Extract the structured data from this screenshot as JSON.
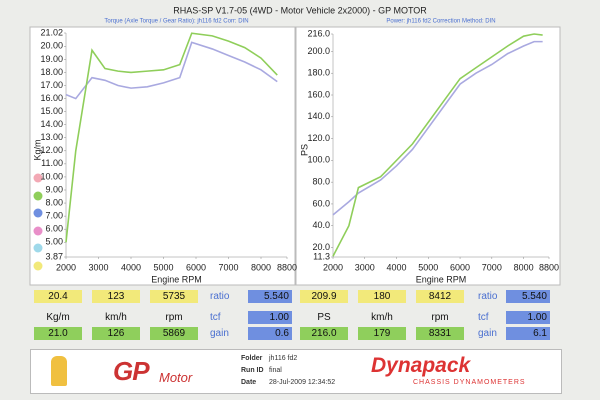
{
  "header": {
    "title": "RHAS-SP V1.7-05   (4WD - Motor Vehicle 2x2000) - GP MOTOR"
  },
  "chart_data": [
    {
      "type": "line",
      "subtitle": "Torque (Axle Torque / Gear Ratio): jh116 fd2   Corr: DIN",
      "ylabel": "Kg/m",
      "xlabel": "Engine RPM",
      "x": [
        2000,
        2300,
        2800,
        3200,
        3600,
        4000,
        4500,
        5000,
        5500,
        5869,
        6500,
        7000,
        7500,
        8000,
        8500
      ],
      "series": [
        {
          "color": "#a9a9e0",
          "values": [
            16.3,
            16.0,
            17.6,
            17.4,
            17.0,
            16.8,
            16.9,
            17.2,
            17.6,
            20.3,
            19.8,
            19.3,
            18.8,
            18.2,
            17.3
          ]
        },
        {
          "color": "#8fce5a",
          "values": [
            5.0,
            12.0,
            19.7,
            18.3,
            18.1,
            18.0,
            18.1,
            18.2,
            18.6,
            21.0,
            20.8,
            20.4,
            19.9,
            19.1,
            17.8
          ]
        }
      ],
      "xlim": [
        2000,
        8800
      ],
      "xticks": [
        2000,
        3000,
        4000,
        5000,
        6000,
        7000,
        8000,
        8800
      ],
      "ylim": [
        3.87,
        21.02
      ],
      "yticks": [
        21.02,
        {
          "value": 20,
          "label": "20.00"
        },
        {
          "value": 19,
          "label": "19.00"
        },
        {
          "value": 18,
          "label": "18.00"
        },
        {
          "value": 17,
          "label": "17.00"
        },
        {
          "value": 16,
          "label": "16.00"
        },
        {
          "value": 15,
          "label": "15.00"
        },
        {
          "value": 14,
          "label": "14.00"
        },
        {
          "value": 13,
          "label": "13.00"
        },
        {
          "value": 12,
          "label": "12.00"
        },
        {
          "value": 11,
          "label": "11.00"
        },
        {
          "value": 10,
          "label": "10.00"
        },
        {
          "value": 9,
          "label": "9.00"
        },
        {
          "value": 8,
          "label": "8.00"
        },
        {
          "value": 7,
          "label": "7.00"
        },
        {
          "value": 6,
          "label": "6.00"
        },
        {
          "value": 5,
          "label": "5.00"
        },
        3.87
      ]
    },
    {
      "type": "line",
      "subtitle": "Power: jh116 fd2   Correction Method: DIN",
      "ylabel": "PS",
      "xlabel": "Engine RPM",
      "x": [
        2000,
        2500,
        2800,
        3500,
        4000,
        4500,
        5000,
        5500,
        6000,
        6500,
        7000,
        7500,
        8000,
        8331,
        8600
      ],
      "series": [
        {
          "color": "#a9a9e0",
          "values": [
            50,
            62,
            70,
            82,
            95,
            110,
            130,
            150,
            170,
            180,
            188,
            198,
            205,
            209,
            209
          ]
        },
        {
          "color": "#8fce5a",
          "values": [
            12,
            40,
            75,
            85,
            100,
            115,
            135,
            155,
            175,
            185,
            195,
            205,
            214,
            216,
            215
          ]
        }
      ],
      "xlim": [
        2000,
        8800
      ],
      "xticks": [
        2000,
        3000,
        4000,
        5000,
        6000,
        7000,
        8000,
        8800
      ],
      "ylim": [
        11.3,
        216
      ],
      "yticks": [
        {
          "value": 216,
          "label": "216.0"
        },
        {
          "value": 200,
          "label": "200.0"
        },
        {
          "value": 180,
          "label": "180.0"
        },
        {
          "value": 160,
          "label": "160.0"
        },
        {
          "value": 140,
          "label": "140.0"
        },
        {
          "value": 120,
          "label": "120.0"
        },
        {
          "value": 100,
          "label": "100.0"
        },
        {
          "value": 80,
          "label": "80.0"
        },
        {
          "value": 60,
          "label": "60.0"
        },
        {
          "value": 40,
          "label": "40.0"
        },
        {
          "value": 20,
          "label": "20.0"
        },
        11.3
      ]
    }
  ],
  "readouts": [
    {
      "rows": [
        [
          "20.4",
          "123",
          "5735",
          "ratio",
          "5.540"
        ],
        [
          "Kg/m",
          "km/h",
          "rpm",
          "tcf",
          "1.00"
        ],
        [
          "21.0",
          "126",
          "5869",
          "gain",
          "0.6"
        ]
      ]
    },
    {
      "rows": [
        [
          "209.9",
          "180",
          "8412",
          "ratio",
          "5.540"
        ],
        [
          "PS",
          "km/h",
          "rpm",
          "tcf",
          "1.00"
        ],
        [
          "216.0",
          "179",
          "8331",
          "gain",
          "6.1"
        ]
      ]
    }
  ],
  "footer": {
    "logo": [
      "GP",
      "Motor"
    ],
    "fields": [
      [
        "Folder",
        "jh116 fd2"
      ],
      [
        "Run ID",
        "final"
      ],
      [
        "Date",
        "28-Jul-2009  12:34:52"
      ]
    ],
    "brand": "Dynapack",
    "brand_sub": "CHASSIS DYNAMOMETERS"
  }
}
